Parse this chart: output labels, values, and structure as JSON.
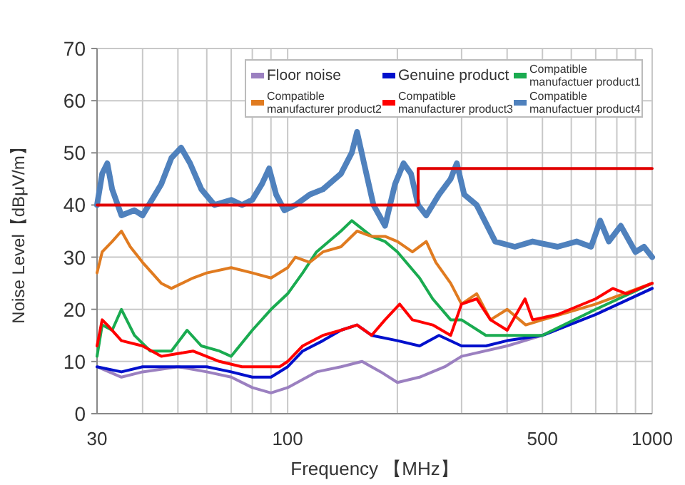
{
  "chart_data": {
    "type": "line",
    "xlabel": "Frequency 【MHz】",
    "ylabel": "Noise Level【dBμV/m】",
    "log": "x",
    "xlim": [
      30,
      1000
    ],
    "ylim": [
      0,
      70
    ],
    "xticks": [
      30,
      {
        "value": 40,
        "label": null
      },
      {
        "value": 50,
        "label": null
      },
      {
        "value": 60,
        "label": null
      },
      {
        "value": 70,
        "label": null
      },
      {
        "value": 80,
        "label": null
      },
      {
        "value": 90,
        "label": null
      },
      100,
      {
        "value": 200,
        "label": null
      },
      {
        "value": 300,
        "label": null
      },
      {
        "value": 400,
        "label": null
      },
      500,
      {
        "value": 600,
        "label": null
      },
      {
        "value": 700,
        "label": null
      },
      {
        "value": 800,
        "label": null
      },
      {
        "value": 900,
        "label": null
      },
      1000
    ],
    "yticks": [
      0,
      10,
      20,
      30,
      40,
      50,
      60,
      70
    ],
    "grid": true,
    "legend": "top right",
    "line_style": "solid",
    "series": [
      {
        "name": "Floor noise",
        "color": "#9b80c0",
        "x": [
          30,
          35,
          40,
          50,
          60,
          70,
          80,
          90,
          100,
          120,
          140,
          160,
          180,
          200,
          230,
          270,
          300,
          400,
          500,
          700,
          1000
        ],
        "values": [
          9,
          7,
          8,
          9,
          8,
          7,
          5,
          4,
          5,
          8,
          9,
          10,
          8,
          6,
          7,
          9,
          11,
          13,
          15,
          19,
          24
        ]
      },
      {
        "name": "Genuine product",
        "color": "#0010cc",
        "x": [
          30,
          35,
          40,
          50,
          60,
          70,
          80,
          90,
          100,
          110,
          125,
          140,
          155,
          170,
          200,
          230,
          260,
          300,
          350,
          400,
          500,
          700,
          1000
        ],
        "values": [
          9,
          8,
          9,
          9,
          9,
          8,
          7,
          7,
          9,
          12,
          14,
          16,
          17,
          15,
          14,
          13,
          15,
          13,
          13,
          14,
          15,
          19,
          24
        ]
      },
      {
        "name": "Compatible manufactuer product1",
        "color": "#1aab50",
        "x": [
          30,
          31,
          33,
          35,
          38,
          42,
          48,
          53,
          58,
          65,
          70,
          80,
          90,
          100,
          110,
          120,
          140,
          150,
          170,
          185,
          200,
          230,
          250,
          280,
          300,
          350,
          400,
          500,
          700,
          1000
        ],
        "values": [
          11,
          17,
          16,
          20,
          15,
          12,
          12,
          16,
          13,
          12,
          11,
          16,
          20,
          23,
          27,
          31,
          35,
          37,
          34,
          33,
          31,
          26,
          22,
          18,
          18,
          15,
          15,
          15,
          20,
          25
        ]
      },
      {
        "name": "Compatible manufacturer product2",
        "color": "#e07b20",
        "x": [
          30,
          31,
          33,
          35,
          37,
          40,
          45,
          48,
          55,
          60,
          70,
          80,
          90,
          100,
          105,
          115,
          125,
          140,
          155,
          170,
          185,
          200,
          220,
          240,
          255,
          280,
          300,
          330,
          360,
          400,
          450,
          500,
          700,
          1000
        ],
        "values": [
          27,
          31,
          33,
          35,
          32,
          29,
          25,
          24,
          26,
          27,
          28,
          27,
          26,
          28,
          30,
          29,
          31,
          32,
          35,
          34,
          34,
          33,
          31,
          33,
          29,
          25,
          21,
          23,
          18,
          20,
          17,
          18,
          21,
          25
        ]
      },
      {
        "name": "Compatible manufacturer product3",
        "color": "#ff0000",
        "x": [
          30,
          31,
          32,
          35,
          40,
          45,
          55,
          65,
          75,
          85,
          95,
          100,
          110,
          125,
          140,
          155,
          170,
          185,
          203,
          220,
          250,
          280,
          300,
          330,
          360,
          400,
          448,
          470,
          550,
          700,
          780,
          850,
          1000
        ],
        "values": [
          13,
          18,
          17,
          14,
          13,
          11,
          12,
          10,
          9,
          9,
          9,
          10,
          13,
          15,
          16,
          17,
          15,
          18,
          21,
          18,
          17,
          15,
          21,
          22,
          18,
          16,
          22,
          18,
          19,
          22,
          24,
          23,
          25
        ]
      },
      {
        "name": "Compatible manufactuer product4",
        "color": "#4f81bd",
        "x": [
          30,
          31,
          32,
          33,
          35,
          38,
          40,
          45,
          48,
          51,
          54,
          58,
          63,
          70,
          75,
          80,
          85,
          89,
          93,
          98,
          105,
          115,
          125,
          140,
          150,
          155,
          162,
          172,
          185,
          197,
          208,
          218,
          228,
          240,
          260,
          280,
          291,
          305,
          330,
          371,
          420,
          470,
          550,
          620,
          680,
          720,
          760,
          820,
          900,
          950,
          1000
        ],
        "values": [
          40,
          46,
          48,
          43,
          38,
          39,
          38,
          44,
          49,
          51,
          48,
          43,
          40,
          41,
          40,
          41,
          44,
          47,
          42,
          39,
          40,
          42,
          43,
          46,
          50,
          54,
          48,
          40,
          36,
          44,
          48,
          46,
          40,
          38,
          42,
          45,
          48,
          42,
          40,
          33,
          32,
          33,
          32,
          33,
          32,
          37,
          33,
          36,
          31,
          32,
          30
        ]
      },
      {
        "color": "#e00000",
        "x": [
          30,
          228,
          228,
          1000
        ],
        "values": [
          40,
          40,
          47,
          47
        ]
      }
    ]
  }
}
